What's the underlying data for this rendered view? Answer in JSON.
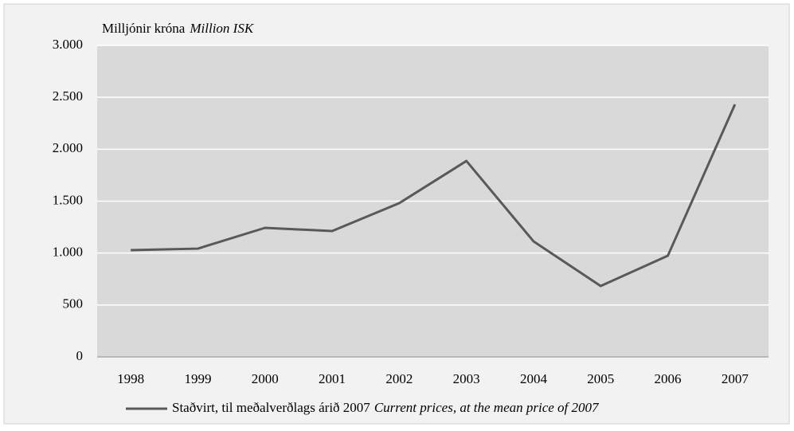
{
  "chart_data": {
    "type": "line",
    "y_label": "Milljónir króna",
    "y_label_en": "Million ISK",
    "categories": [
      "1998",
      "1999",
      "2000",
      "2001",
      "2002",
      "2003",
      "2004",
      "2005",
      "2006",
      "2007"
    ],
    "series": [
      {
        "name": "Staðvirt, til meðalverðlags árið 2007",
        "name_en": "Current prices, at the mean price of 2007",
        "color": "#595959",
        "values": [
          1028,
          1043,
          1243,
          1212,
          1481,
          1887,
          1113,
          683,
          974,
          2432
        ]
      }
    ],
    "ylim": [
      0,
      3000
    ],
    "yticks": [
      0,
      500,
      {
        "value": 1000,
        "label": "1.000"
      },
      {
        "value": 1500,
        "label": "1.500"
      },
      {
        "value": 2000,
        "label": "2.000"
      },
      {
        "value": 2500,
        "label": "2.500"
      },
      {
        "value": 3000,
        "label": "3.000"
      }
    ],
    "grid": true,
    "plot_background": "#d9d9d9",
    "grid_color": "#ffffff"
  }
}
